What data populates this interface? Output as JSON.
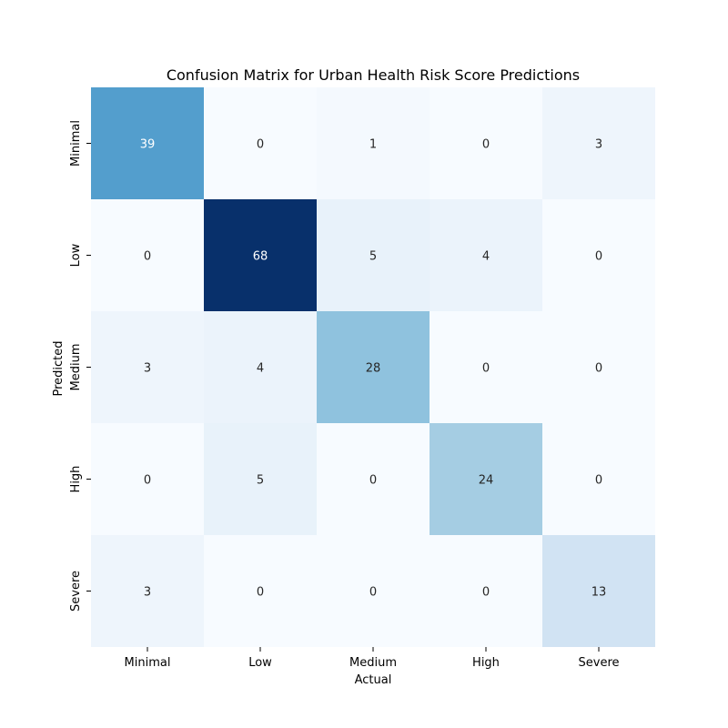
{
  "chart_data": {
    "type": "heatmap",
    "title": "Confusion Matrix for Urban Health Risk Score Predictions",
    "xlabel": "Actual",
    "ylabel": "Predicted",
    "x_categories": [
      "Minimal",
      "Low",
      "Medium",
      "High",
      "Severe"
    ],
    "y_categories": [
      "Minimal",
      "Low",
      "Medium",
      "High",
      "Severe"
    ],
    "values": [
      [
        39,
        0,
        1,
        0,
        3
      ],
      [
        0,
        68,
        5,
        4,
        0
      ],
      [
        3,
        4,
        28,
        0,
        0
      ],
      [
        0,
        5,
        0,
        24,
        0
      ],
      [
        3,
        0,
        0,
        0,
        13
      ]
    ],
    "value_range": [
      0,
      68
    ],
    "colormap": "Blues",
    "colorbar": false,
    "grid": false
  }
}
